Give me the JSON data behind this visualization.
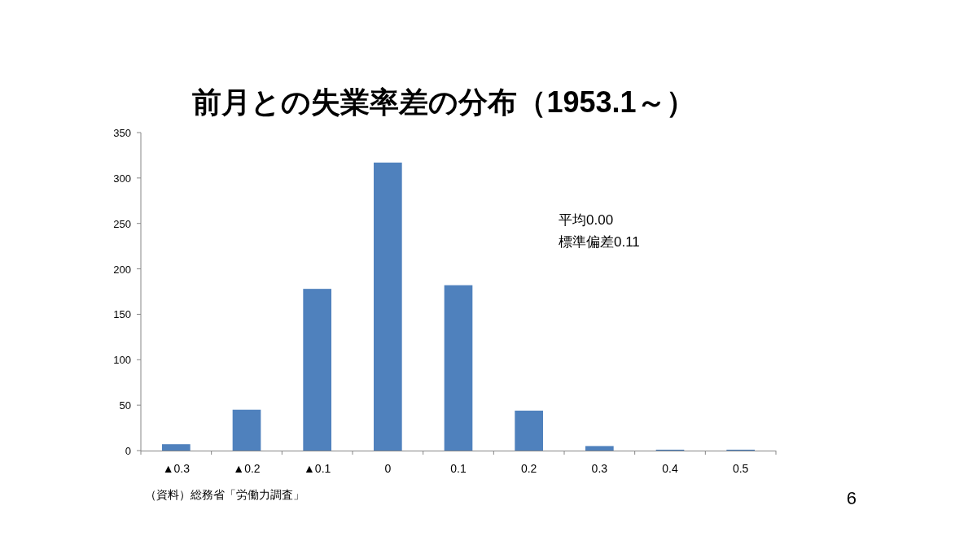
{
  "chart_data": {
    "type": "bar",
    "title": "前月との失業率差の分布（1953.1～）",
    "categories": [
      "▲0.3",
      "▲0.2",
      "▲0.1",
      "0",
      "0.1",
      "0.2",
      "0.3",
      "0.4",
      "0.5"
    ],
    "values": [
      7,
      45,
      178,
      317,
      182,
      44,
      5,
      1,
      1
    ],
    "color": "#4f81bd",
    "ylim": [
      0,
      350
    ],
    "yticks": [
      0,
      50,
      100,
      150,
      200,
      250,
      300,
      350
    ],
    "grid": false,
    "annotations": [
      "平均0.00",
      "標準偏差0.11",
      "（資料）総務省「労働力調査」",
      "6"
    ]
  }
}
